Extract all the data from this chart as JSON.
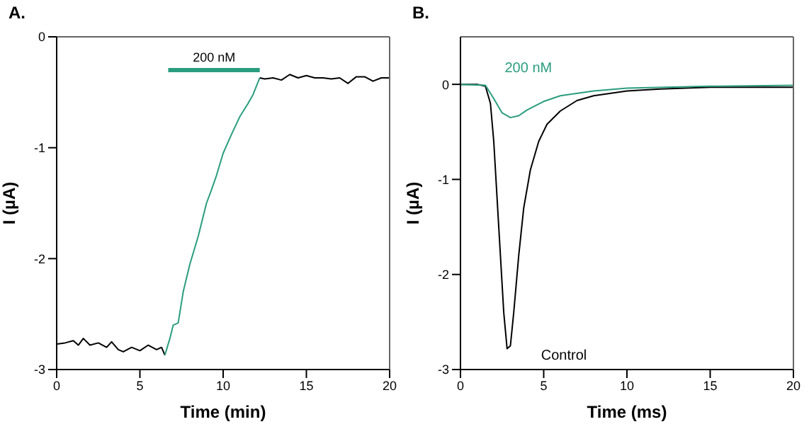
{
  "chart_data": [
    {
      "type": "line",
      "title": "A.",
      "xlabel": "Time (min)",
      "ylabel": "I (µA)",
      "xlim": [
        0,
        20
      ],
      "xticks": [
        0,
        5,
        10,
        15,
        20
      ],
      "ylim": [
        -3,
        0
      ],
      "yticks": [
        0,
        -1,
        -2,
        -3
      ],
      "marker": "none",
      "line_style": "solid",
      "series": [
        {
          "name": "200 nM",
          "color": "#2a9d7f",
          "x": [
            6.7,
            12.2
          ],
          "values": [
            -0.3,
            -0.3
          ]
        },
        {
          "color": "#000000",
          "x": [
            0,
            0.5,
            1,
            1.3,
            1.6,
            2,
            2.5,
            3,
            3.3,
            3.7,
            4,
            4.5,
            5,
            5.5,
            6,
            6.3,
            6.5
          ],
          "values": [
            -2.77,
            -2.76,
            -2.74,
            -2.78,
            -2.72,
            -2.78,
            -2.76,
            -2.8,
            -2.75,
            -2.82,
            -2.84,
            -2.8,
            -2.83,
            -2.78,
            -2.82,
            -2.8,
            -2.87
          ]
        },
        {
          "color": "#2a9d7f",
          "x": [
            6.5,
            6.8,
            7,
            7.3,
            7.6,
            8,
            8.5,
            9,
            9.3,
            9.6,
            10,
            10.5,
            11,
            11.5,
            11.8,
            12.2
          ],
          "values": [
            -2.87,
            -2.72,
            -2.6,
            -2.58,
            -2.3,
            -2.05,
            -1.8,
            -1.5,
            -1.38,
            -1.25,
            -1.05,
            -0.88,
            -0.72,
            -0.6,
            -0.52,
            -0.37
          ]
        },
        {
          "color": "#000000",
          "x": [
            12.2,
            12.5,
            13,
            13.5,
            14,
            14.5,
            15,
            15.5,
            16,
            16.5,
            17,
            17.5,
            18,
            18.5,
            19,
            19.5,
            20
          ],
          "values": [
            -0.37,
            -0.38,
            -0.37,
            -0.39,
            -0.34,
            -0.37,
            -0.35,
            -0.37,
            -0.37,
            -0.38,
            -0.37,
            -0.42,
            -0.36,
            -0.36,
            -0.4,
            -0.37,
            -0.37
          ]
        }
      ]
    },
    {
      "type": "line",
      "title": "B.",
      "xlabel": "Time (ms)",
      "ylabel": "I (µA)",
      "xlim": [
        0,
        20
      ],
      "xticks": [
        0,
        5,
        10,
        15,
        20
      ],
      "ylim": [
        -3,
        0.5
      ],
      "yticks": [
        0,
        -1,
        -2,
        -3
      ],
      "marker": "none",
      "line_style": "solid",
      "series": [
        {
          "name": "Control",
          "color": "#000000",
          "x": [
            0,
            1,
            1.5,
            1.8,
            2,
            2.3,
            2.6,
            2.8,
            3,
            3.2,
            3.5,
            3.8,
            4.2,
            4.7,
            5.2,
            6,
            7,
            8,
            10,
            12,
            15,
            20
          ],
          "values": [
            0,
            0,
            -0.02,
            -0.2,
            -0.6,
            -1.5,
            -2.4,
            -2.78,
            -2.75,
            -2.4,
            -1.8,
            -1.3,
            -0.9,
            -0.6,
            -0.42,
            -0.28,
            -0.17,
            -0.12,
            -0.07,
            -0.05,
            -0.03,
            -0.03
          ]
        },
        {
          "name": "200 nM",
          "color": "#2a9d7f",
          "x": [
            0,
            1.5,
            2,
            2.5,
            3,
            3.5,
            4,
            5,
            6,
            8,
            10,
            15,
            20
          ],
          "values": [
            0,
            -0.01,
            -0.15,
            -0.3,
            -0.35,
            -0.33,
            -0.27,
            -0.18,
            -0.12,
            -0.07,
            -0.04,
            -0.02,
            -0.01
          ]
        }
      ]
    }
  ]
}
